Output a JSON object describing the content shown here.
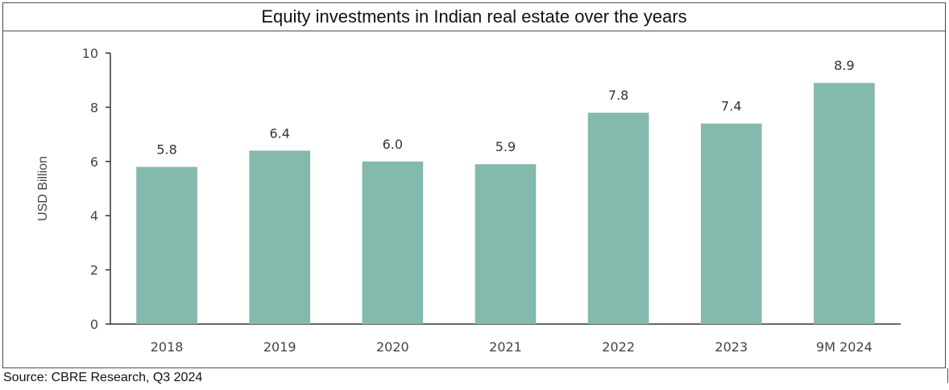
{
  "source": "Source: CBRE Research, Q3 2024",
  "colors": {
    "bar": "#84BAAD",
    "axis": "#333333"
  },
  "chart_data": {
    "type": "bar",
    "title": "Equity investments in Indian real estate over the years",
    "xlabel": "",
    "ylabel": "USD Billion",
    "categories": [
      "2018",
      "2019",
      "2020",
      "2021",
      "2022",
      "2023",
      "9M 2024"
    ],
    "values": [
      5.8,
      6.4,
      6.0,
      5.9,
      7.8,
      7.4,
      8.9
    ],
    "data_labels": [
      "5.8",
      "6.4",
      "6.0",
      "5.9",
      "7.8",
      "7.4",
      "8.9"
    ],
    "ylim": [
      0,
      10
    ],
    "yticks": [
      0,
      2,
      4,
      6,
      8,
      10
    ],
    "grid": false,
    "legend": "none"
  }
}
